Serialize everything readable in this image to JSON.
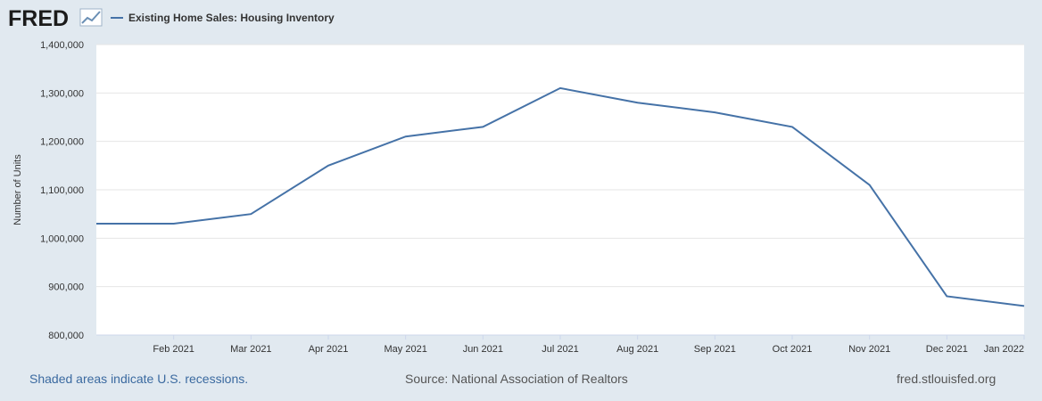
{
  "header": {
    "logo_text": "FRED",
    "legend_label": "Existing Home Sales: Housing Inventory"
  },
  "footer": {
    "recession_note": "Shaded areas indicate U.S. recessions.",
    "source": "Source: National Association of Realtors",
    "site": "fred.stlouisfed.org"
  },
  "colors": {
    "series": "#4572a7",
    "background": "#e1e9f0",
    "plot": "#ffffff",
    "grid": "#e6e6e6"
  },
  "chart_data": {
    "type": "line",
    "title": "",
    "ylabel": "Number of Units",
    "xlabel": "",
    "ylim": [
      800000,
      1400000
    ],
    "y_ticks": [
      800000,
      900000,
      1000000,
      1100000,
      1200000,
      1300000,
      1400000
    ],
    "y_tick_labels": [
      "800,000",
      "900,000",
      "1,000,000",
      "1,100,000",
      "1,200,000",
      "1,300,000",
      "1,400,000"
    ],
    "x_tick_labels": [
      "Feb 2021",
      "Mar 2021",
      "Apr 2021",
      "May 2021",
      "Jun 2021",
      "Jul 2021",
      "Aug 2021",
      "Sep 2021",
      "Oct 2021",
      "Nov 2021",
      "Dec 2021",
      "Jan 2022"
    ],
    "grid": true,
    "legend": "top-left",
    "series": [
      {
        "name": "Existing Home Sales: Housing Inventory",
        "x": [
          "2021-01",
          "2021-02",
          "2021-03",
          "2021-04",
          "2021-05",
          "2021-06",
          "2021-07",
          "2021-08",
          "2021-09",
          "2021-10",
          "2021-11",
          "2021-12",
          "2022-01"
        ],
        "values": [
          1030000,
          1030000,
          1050000,
          1150000,
          1210000,
          1230000,
          1310000,
          1280000,
          1260000,
          1230000,
          1110000,
          880000,
          860000
        ]
      }
    ]
  }
}
